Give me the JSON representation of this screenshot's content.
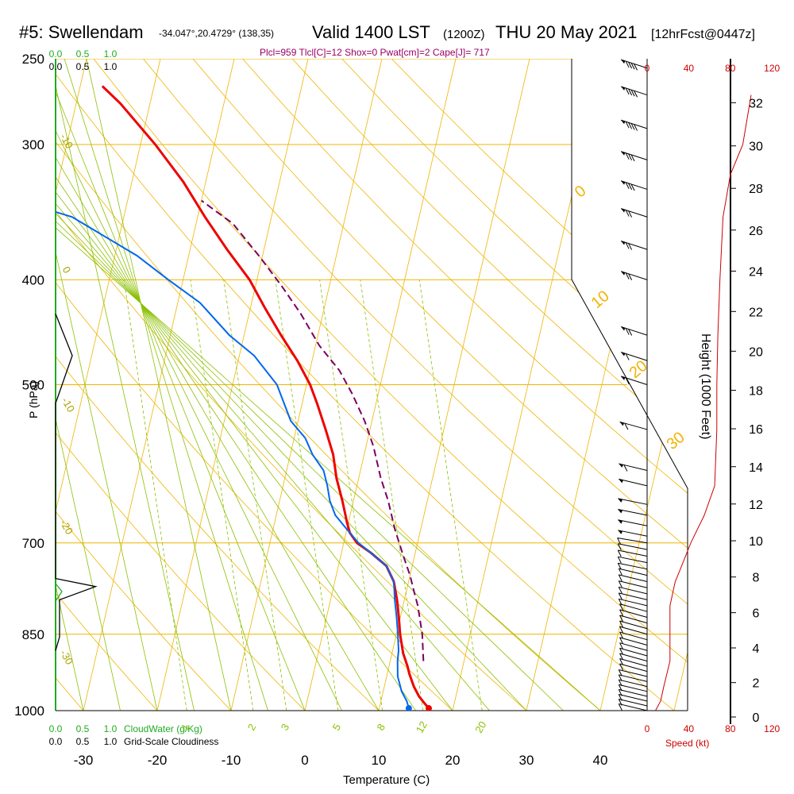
{
  "header": {
    "station": "#5: Swellendam",
    "coords": "-34.047°,20.4729° (138,35)",
    "valid": "Valid 1400 LST",
    "zulu": "(1200Z)",
    "date": "THU 20 May 2021",
    "forecast": "[12hrFcst@0447z]"
  },
  "stats_line": "Plcl=959 Tlcl[C]=12 Shox=0 Pwat[cm]=2 Cape[J]= 717",
  "colors": {
    "isotherm": "#f0b400",
    "dry_adiabat": "#f0b400",
    "moist_adiabat": "#8bc000",
    "mixing_ratio": "#8bc000",
    "temperature": "#ee0000",
    "dewpoint": "#0066ee",
    "parcel": "#7a0060",
    "cloudwater": "#22aa22",
    "wind_speed": "#cc0000",
    "stats": "#990066"
  },
  "chart_data": {
    "type": "line",
    "title": "#5: Swellendam",
    "xlabel": "Temperature (C)",
    "ylabel": "P (hPa)",
    "y2label": "Height (1000 Feet)",
    "xlim": [
      -35,
      35
    ],
    "ylim_pressure": [
      1000,
      250
    ],
    "x_ticks": [
      -30,
      -20,
      -10,
      0,
      10,
      20,
      30,
      40
    ],
    "p_ticks": [
      1000,
      850,
      700,
      500,
      400,
      300,
      250
    ],
    "height_ticks": [
      0,
      2,
      4,
      6,
      8,
      10,
      12,
      14,
      16,
      18,
      20,
      22,
      24,
      26,
      28,
      30,
      32
    ],
    "speed_ticks_top": [
      0,
      40,
      80,
      120
    ],
    "speed_ticks_bottom": [
      0,
      40,
      80,
      120
    ],
    "speed_label": "Speed (kt)",
    "cloud_ticks": [
      0.0,
      0.5,
      1.0
    ],
    "cloudwater_label": "CloudWater (g/Kg)",
    "cloudiness_label": "Grid-Scale Cloudiness",
    "mixing_ratio_labels": [
      1,
      2,
      3,
      5,
      8,
      12,
      20
    ],
    "dry_adiabat_labels": [
      -10,
      0,
      10,
      20,
      30
    ],
    "moist_adiabat_labels": [
      0,
      -10,
      -20,
      -30,
      10,
      20,
      30
    ],
    "series": [
      {
        "name": "Temperature",
        "points": [
          [
            16.7,
            995
          ],
          [
            16,
            985
          ],
          [
            15,
            970
          ],
          [
            14,
            950
          ],
          [
            13,
            925
          ],
          [
            12.5,
            910
          ],
          [
            11.5,
            885
          ],
          [
            10.5,
            850
          ],
          [
            9.8,
            820
          ],
          [
            9,
            790
          ],
          [
            8,
            760
          ],
          [
            6.5,
            735
          ],
          [
            4,
            715
          ],
          [
            1.8,
            700
          ],
          [
            0.5,
            685
          ],
          [
            -0.2,
            670
          ],
          [
            -1.5,
            640
          ],
          [
            -3,
            610
          ],
          [
            -4.2,
            580
          ],
          [
            -6,
            550
          ],
          [
            -8,
            520
          ],
          [
            -9.5,
            500
          ],
          [
            -12,
            475
          ],
          [
            -15,
            450
          ],
          [
            -18,
            425
          ],
          [
            -21,
            400
          ],
          [
            -25,
            375
          ],
          [
            -29,
            350
          ],
          [
            -33,
            325
          ],
          [
            -38,
            300
          ],
          [
            -44,
            275
          ],
          [
            -47,
            265
          ]
        ]
      },
      {
        "name": "Dewpoint",
        "points": [
          [
            14,
            995
          ],
          [
            13.5,
            980
          ],
          [
            12.5,
            960
          ],
          [
            11.5,
            930
          ],
          [
            11,
            900
          ],
          [
            10.8,
            880
          ],
          [
            10.2,
            850
          ],
          [
            9.5,
            820
          ],
          [
            8.7,
            790
          ],
          [
            8,
            760
          ],
          [
            6.5,
            735
          ],
          [
            4,
            715
          ],
          [
            2,
            700
          ],
          [
            0,
            680
          ],
          [
            -2,
            660
          ],
          [
            -3.2,
            640
          ],
          [
            -4,
            620
          ],
          [
            -5,
            600
          ],
          [
            -7,
            580
          ],
          [
            -8.5,
            560
          ],
          [
            -11,
            540
          ],
          [
            -14,
            500
          ],
          [
            -18,
            470
          ],
          [
            -22,
            450
          ],
          [
            -27,
            420
          ],
          [
            -32,
            400
          ],
          [
            -37,
            380
          ],
          [
            -47,
            350
          ],
          [
            -60,
            330
          ],
          [
            -75,
            310
          ],
          [
            -85,
            300
          ],
          [
            -90,
            275
          ],
          [
            -81,
            262
          ]
        ]
      },
      {
        "name": "Parcel",
        "points": [
          [
            14.5,
            900
          ],
          [
            13.5,
            850
          ],
          [
            12,
            800
          ],
          [
            11.2,
            780
          ],
          [
            10,
            750
          ],
          [
            8.5,
            720
          ],
          [
            6.5,
            680
          ],
          [
            4.7,
            640
          ],
          [
            3,
            610
          ],
          [
            1,
            570
          ],
          [
            -1,
            540
          ],
          [
            -3.5,
            510
          ],
          [
            -6,
            485
          ],
          [
            -9.5,
            460
          ],
          [
            -13,
            430
          ],
          [
            -16.5,
            405
          ],
          [
            -20.5,
            380
          ],
          [
            -25,
            355
          ],
          [
            -30,
            338
          ]
        ]
      },
      {
        "name": "Wind speed",
        "points": [
          [
            8,
            1000
          ],
          [
            13,
            980
          ],
          [
            16,
            950
          ],
          [
            22,
            900
          ],
          [
            22,
            850
          ],
          [
            22,
            800
          ],
          [
            27,
            760
          ],
          [
            32,
            740
          ],
          [
            42,
            700
          ],
          [
            55,
            660
          ],
          [
            65,
            620
          ],
          [
            67,
            550
          ],
          [
            67,
            500
          ],
          [
            68,
            450
          ],
          [
            70,
            400
          ],
          [
            73,
            350
          ],
          [
            80,
            320
          ],
          [
            92,
            300
          ],
          [
            100,
            270
          ]
        ]
      }
    ],
    "cloudiness_profile": [
      [
        0,
        430
      ],
      [
        0.5,
        470
      ],
      [
        0.05,
        515
      ],
      [
        0,
        520
      ],
      [
        0,
        755
      ],
      [
        1.2,
        768
      ],
      [
        0.12,
        790
      ],
      [
        0.12,
        855
      ],
      [
        0,
        880
      ]
    ],
    "wind_barbs": [
      {
        "p": 1000,
        "dir": 290,
        "spd": 10
      },
      {
        "p": 990,
        "dir": 290,
        "spd": 10
      },
      {
        "p": 980,
        "dir": 290,
        "spd": 10
      },
      {
        "p": 970,
        "dir": 290,
        "spd": 10
      },
      {
        "p": 960,
        "dir": 290,
        "spd": 10
      },
      {
        "p": 950,
        "dir": 290,
        "spd": 10
      },
      {
        "p": 940,
        "dir": 290,
        "spd": 10
      },
      {
        "p": 930,
        "dir": 290,
        "spd": 10
      },
      {
        "p": 920,
        "dir": 295,
        "spd": 10
      },
      {
        "p": 910,
        "dir": 295,
        "spd": 10
      },
      {
        "p": 900,
        "dir": 295,
        "spd": 10
      },
      {
        "p": 890,
        "dir": 295,
        "spd": 10
      },
      {
        "p": 880,
        "dir": 295,
        "spd": 10
      },
      {
        "p": 870,
        "dir": 295,
        "spd": 10
      },
      {
        "p": 860,
        "dir": 295,
        "spd": 10
      },
      {
        "p": 850,
        "dir": 295,
        "spd": 10
      },
      {
        "p": 840,
        "dir": 295,
        "spd": 10
      },
      {
        "p": 830,
        "dir": 295,
        "spd": 10
      },
      {
        "p": 820,
        "dir": 295,
        "spd": 10
      },
      {
        "p": 810,
        "dir": 295,
        "spd": 10
      },
      {
        "p": 800,
        "dir": 290,
        "spd": 10
      },
      {
        "p": 790,
        "dir": 290,
        "spd": 10
      },
      {
        "p": 780,
        "dir": 290,
        "spd": 10
      },
      {
        "p": 770,
        "dir": 290,
        "spd": 10
      },
      {
        "p": 760,
        "dir": 290,
        "spd": 10
      },
      {
        "p": 750,
        "dir": 290,
        "spd": 10
      },
      {
        "p": 740,
        "dir": 285,
        "spd": 10
      },
      {
        "p": 730,
        "dir": 285,
        "spd": 10
      },
      {
        "p": 720,
        "dir": 285,
        "spd": 10
      },
      {
        "p": 710,
        "dir": 285,
        "spd": 10
      },
      {
        "p": 700,
        "dir": 280,
        "spd": 10
      },
      {
        "p": 690,
        "dir": 285,
        "spd": 55
      },
      {
        "p": 675,
        "dir": 285,
        "spd": 55
      },
      {
        "p": 660,
        "dir": 285,
        "spd": 55
      },
      {
        "p": 645,
        "dir": 285,
        "spd": 55
      },
      {
        "p": 620,
        "dir": 290,
        "spd": 55
      },
      {
        "p": 600,
        "dir": 290,
        "spd": 60
      },
      {
        "p": 550,
        "dir": 295,
        "spd": 60
      },
      {
        "p": 500,
        "dir": 300,
        "spd": 65
      },
      {
        "p": 475,
        "dir": 300,
        "spd": 65
      },
      {
        "p": 450,
        "dir": 300,
        "spd": 70
      },
      {
        "p": 400,
        "dir": 300,
        "spd": 70
      },
      {
        "p": 375,
        "dir": 300,
        "spd": 75
      },
      {
        "p": 350,
        "dir": 300,
        "spd": 75
      },
      {
        "p": 330,
        "dir": 300,
        "spd": 80
      },
      {
        "p": 310,
        "dir": 300,
        "spd": 85
      },
      {
        "p": 290,
        "dir": 300,
        "spd": 90
      },
      {
        "p": 270,
        "dir": 300,
        "spd": 90
      },
      {
        "p": 255,
        "dir": 300,
        "spd": 95
      }
    ]
  }
}
